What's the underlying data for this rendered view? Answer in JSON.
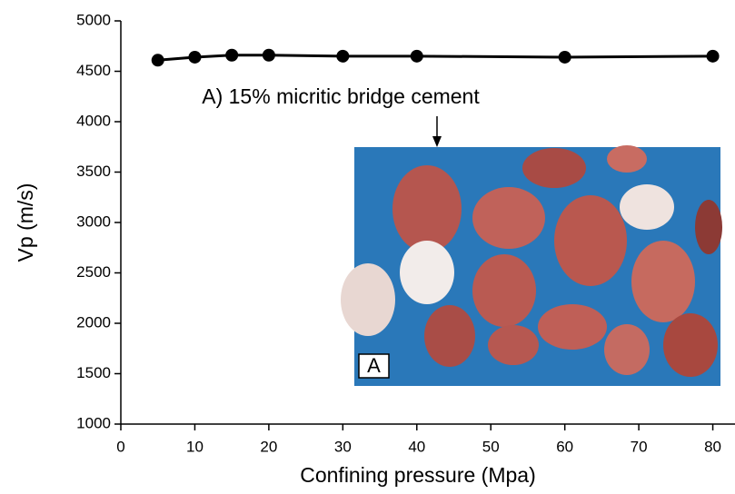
{
  "chart_data": {
    "type": "line",
    "x_label": "Confining pressure (Mpa)",
    "y_label": "Vp  (m/s)",
    "annotation": "A) 15% micritic bridge cement",
    "inset_label": "A",
    "series": [
      {
        "color": "#000000",
        "x": [
          5,
          10,
          15,
          20,
          30,
          40,
          60,
          80
        ],
        "values": [
          4610,
          4640,
          4660,
          4660,
          4650,
          4650,
          4640,
          4650
        ]
      }
    ],
    "xlim": [
      0,
      83
    ],
    "xticks": [
      0,
      10,
      20,
      30,
      40,
      50,
      60,
      70,
      80
    ],
    "ylim": [
      1000,
      5000
    ],
    "yticks": [
      1000,
      1500,
      2000,
      2500,
      3000,
      3500,
      4000,
      4500,
      5000
    ]
  }
}
